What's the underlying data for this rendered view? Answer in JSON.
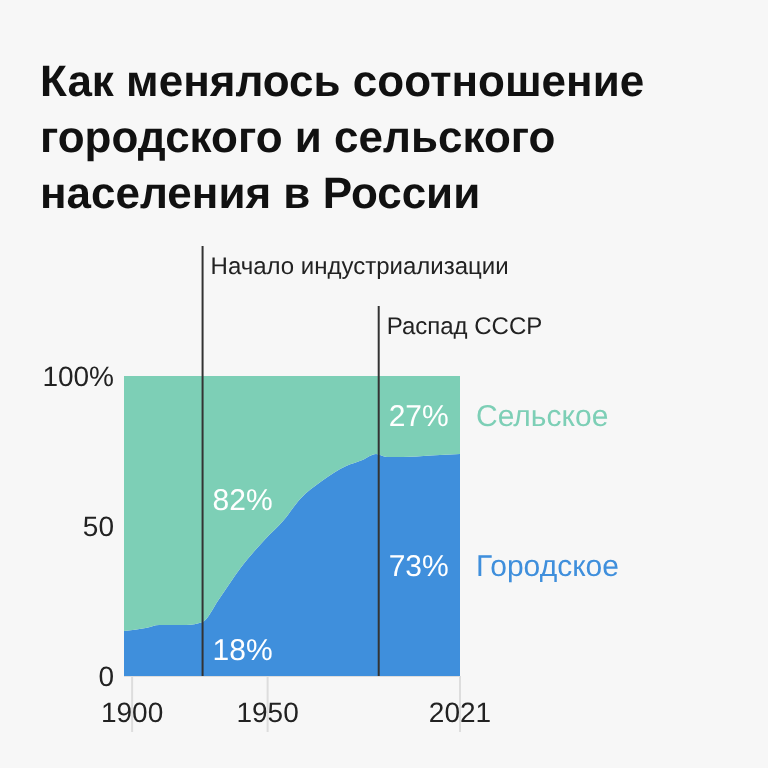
{
  "chart_data": {
    "type": "area",
    "stacked": true,
    "title": "Как менялось соотношение городского и сельского населения в России",
    "x": [
      1897,
      1905,
      1910,
      1920,
      1926,
      1932,
      1940,
      1949,
      1956,
      1962,
      1970,
      1979,
      1985,
      1990,
      1994,
      2000,
      2010,
      2021
    ],
    "series": [
      {
        "name": "Городское",
        "color": "#3f8fdc",
        "values": [
          15,
          16,
          17,
          17,
          18,
          25.5,
          36,
          45.5,
          52,
          59,
          65,
          70,
          72,
          74,
          73,
          73,
          73.5,
          74
        ]
      },
      {
        "name": "Сельское",
        "color": "#7dcfb6",
        "values": [
          85,
          84,
          83,
          83,
          82,
          74.5,
          64,
          54.5,
          48,
          41,
          35,
          30,
          28,
          26,
          27,
          27,
          26.5,
          26
        ]
      }
    ],
    "xlim": [
      1897,
      2021
    ],
    "xticks": [
      1900,
      1950,
      2021
    ],
    "ylim": [
      0,
      100
    ],
    "yticks": [
      {
        "value": 0,
        "label": "0"
      },
      {
        "value": 50,
        "label": "50"
      },
      {
        "value": 100,
        "label": "100%"
      }
    ],
    "ref_lines": [
      {
        "axis": "x",
        "value": 1926,
        "label": "Начало индустриализации",
        "color": "#333333"
      },
      {
        "axis": "x",
        "value": 1991,
        "label": "Распад СССР",
        "color": "#333333"
      }
    ],
    "annotations": [
      "82%",
      "18%",
      "27%",
      "73%"
    ],
    "legend": "right"
  }
}
